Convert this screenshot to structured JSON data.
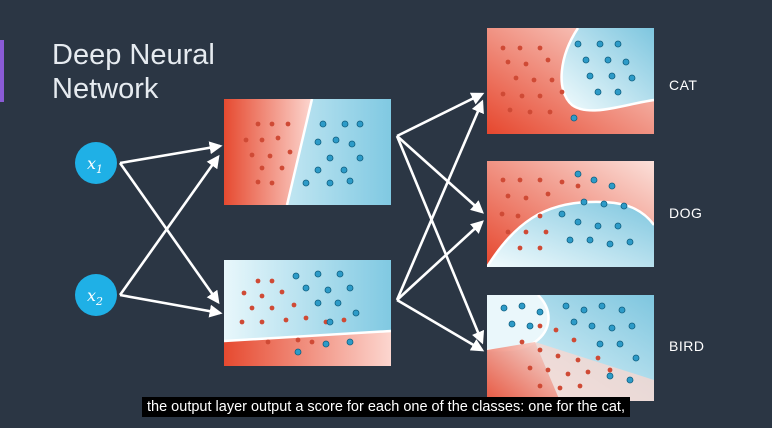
{
  "slide": {
    "title_line1": "Deep Neural",
    "title_line2": "Network"
  },
  "inputs": [
    {
      "base": "x",
      "sub": "1"
    },
    {
      "base": "x",
      "sub": "2"
    }
  ],
  "outputs": [
    "CAT",
    "DOG",
    "BIRD"
  ],
  "caption": "the output layer output a score for each one of the classes: one for the cat,",
  "colors": {
    "background": "#2b3644",
    "red_region": "#e8533b",
    "blue_region": "#8fd0e6",
    "node": "#1fb0e6",
    "red_point": "#cf4a35",
    "blue_point": "#2d9bc8",
    "accent_bar": "#8a5bd6"
  }
}
